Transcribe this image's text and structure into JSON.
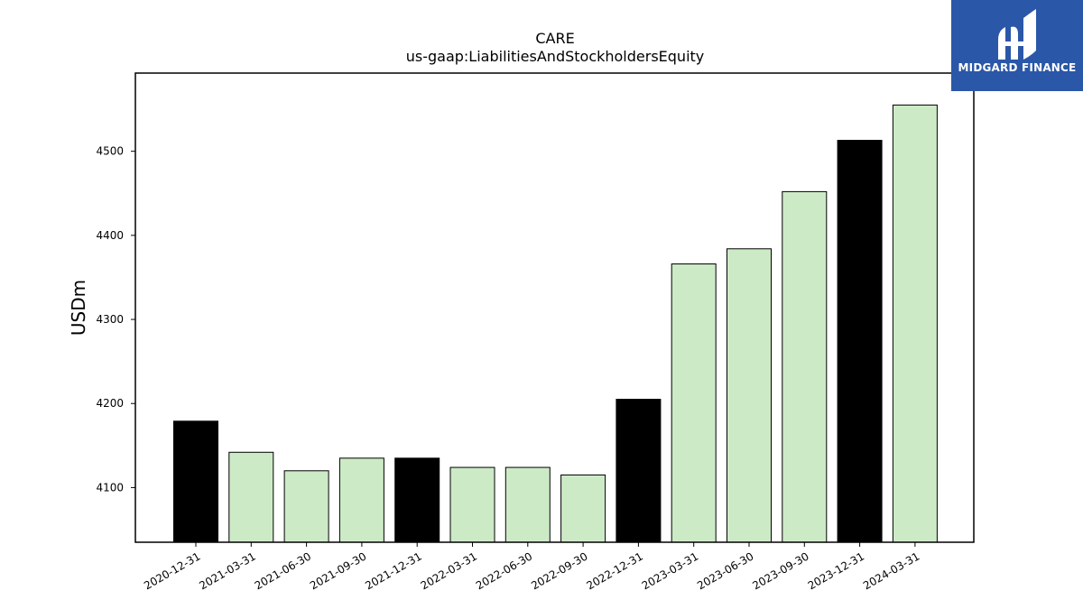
{
  "brand": {
    "name": "MIDGARD FINANCE",
    "bg_color": "#2b57a8"
  },
  "chart_data": {
    "type": "bar",
    "title": "CARE",
    "subtitle": "us-gaap:LiabilitiesAndStockholdersEquity",
    "xlabel": "",
    "ylabel": "USDm",
    "categories": [
      "2020-12-31",
      "2021-03-31",
      "2021-06-30",
      "2021-09-30",
      "2021-12-31",
      "2022-03-31",
      "2022-06-30",
      "2022-09-30",
      "2022-12-31",
      "2023-03-31",
      "2023-06-30",
      "2023-09-30",
      "2023-12-31",
      "2024-03-31"
    ],
    "values": [
      4179,
      4142,
      4120,
      4135,
      4135,
      4124,
      4124,
      4115,
      4205,
      4366,
      4384,
      4452,
      4513,
      4555
    ],
    "bar_colors": [
      "#000000",
      "#cdeac7",
      "#cdeac7",
      "#cdeac7",
      "#000000",
      "#cdeac7",
      "#cdeac7",
      "#cdeac7",
      "#000000",
      "#cdeac7",
      "#cdeac7",
      "#cdeac7",
      "#000000",
      "#cdeac7"
    ],
    "yticks": [
      4100,
      4200,
      4300,
      4400,
      4500
    ],
    "ylim": [
      4035,
      4593
    ],
    "grid": false,
    "legend": "none"
  }
}
